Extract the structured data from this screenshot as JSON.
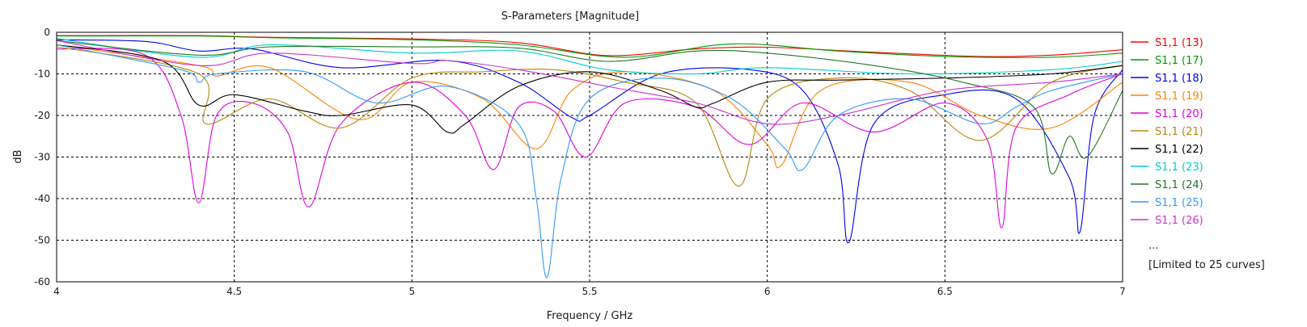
{
  "chart_data": {
    "type": "line",
    "title": "S-Parameters [Magnitude]",
    "xlabel": "Frequency / GHz",
    "ylabel": "dB",
    "xlim": [
      4,
      7
    ],
    "ylim": [
      -60,
      0
    ],
    "xticks": [
      4,
      4.5,
      5,
      5.5,
      6,
      6.5,
      7
    ],
    "xtick_labels": [
      "4",
      "4.5",
      "5",
      "5.5",
      "6",
      "6.5",
      "7"
    ],
    "yticks": [
      0,
      -10,
      -20,
      -30,
      -40,
      -50,
      -60
    ],
    "ytick_labels": [
      "0",
      "-10",
      "-20",
      "-30",
      "-40",
      "-50",
      "-60"
    ],
    "grid": true,
    "legend_position": "right",
    "legend_ellipsis": "...",
    "legend_note": "[Limited to 25 curves]",
    "series": [
      {
        "name": "S1,1 (13)",
        "color": "#ff0000",
        "x": [
          4.0,
          4.4,
          4.6,
          5.0,
          5.3,
          5.55,
          5.8,
          6.0,
          6.3,
          6.6,
          6.8,
          7.0
        ],
        "y": [
          -0.8,
          -0.8,
          -1.2,
          -1.6,
          -2.5,
          -5.6,
          -4.0,
          -3.6,
          -4.8,
          -5.8,
          -5.5,
          -4.2
        ]
      },
      {
        "name": "S1,1 (17)",
        "color": "#009900",
        "x": [
          4.0,
          4.4,
          4.6,
          5.0,
          5.3,
          5.6,
          5.9,
          6.2,
          6.5,
          6.8,
          7.0
        ],
        "y": [
          -0.9,
          -0.9,
          -1.3,
          -1.8,
          -3.0,
          -6.0,
          -2.8,
          -4.5,
          -5.8,
          -6.0,
          -5.0
        ]
      },
      {
        "name": "S1,1 (18)",
        "color": "#0000ee",
        "x": [
          4.0,
          4.25,
          4.4,
          4.55,
          4.8,
          5.1,
          5.3,
          5.45,
          5.5,
          5.7,
          5.95,
          6.1,
          6.2,
          6.23,
          6.3,
          6.5,
          6.7,
          6.85,
          6.88,
          6.92,
          7.0
        ],
        "y": [
          -1.8,
          -2.2,
          -4.5,
          -4.0,
          -8.5,
          -6.8,
          -12.0,
          -20.5,
          -20.0,
          -10.0,
          -9.0,
          -14.0,
          -32.0,
          -50.5,
          -22.0,
          -15.0,
          -16.0,
          -35.0,
          -48.0,
          -20.0,
          -9.0
        ]
      },
      {
        "name": "S1,1 (19)",
        "color": "#ff8000",
        "x": [
          4.0,
          4.4,
          4.45,
          4.6,
          4.85,
          5.0,
          5.2,
          5.35,
          5.45,
          5.6,
          5.85,
          6.0,
          6.04,
          6.15,
          6.4,
          6.6,
          6.8,
          7.0
        ],
        "y": [
          -3.0,
          -8.0,
          -10.5,
          -8.5,
          -21.0,
          -12.0,
          -16.0,
          -28.0,
          -14.0,
          -9.5,
          -14.0,
          -27.0,
          -32.0,
          -14.0,
          -12.0,
          -20.0,
          -23.0,
          -12.0
        ]
      },
      {
        "name": "S1,1 (20)",
        "color": "#dd00dd",
        "x": [
          4.0,
          4.25,
          4.35,
          4.4,
          4.45,
          4.55,
          4.65,
          4.71,
          4.8,
          5.0,
          5.15,
          5.23,
          5.3,
          5.4,
          5.49,
          5.6,
          5.8,
          5.95,
          6.1,
          6.3,
          6.5,
          6.62,
          6.66,
          6.7,
          6.85,
          7.0
        ],
        "y": [
          -4.0,
          -5.5,
          -20.0,
          -41.0,
          -20.0,
          -17.0,
          -24.0,
          -42.0,
          -22.0,
          -12.0,
          -20.0,
          -33.0,
          -18.0,
          -19.0,
          -30.0,
          -17.0,
          -18.0,
          -27.0,
          -17.0,
          -24.0,
          -17.0,
          -26.0,
          -47.0,
          -23.0,
          -15.0,
          -10.0
        ]
      },
      {
        "name": "S1,1 (21)",
        "color": "#b8860b",
        "x": [
          4.0,
          4.4,
          4.42,
          4.6,
          4.8,
          5.0,
          5.2,
          5.4,
          5.6,
          5.8,
          5.92,
          6.0,
          6.2,
          6.4,
          6.6,
          6.8,
          7.0
        ],
        "y": [
          -3.5,
          -10.0,
          -22.0,
          -16.0,
          -23.0,
          -11.0,
          -9.5,
          -9.0,
          -12.0,
          -17.0,
          -37.0,
          -16.0,
          -11.0,
          -14.0,
          -26.0,
          -12.0,
          -8.0
        ]
      },
      {
        "name": "S1,1 (22)",
        "color": "#000000",
        "x": [
          4.0,
          4.3,
          4.4,
          4.5,
          4.7,
          4.8,
          5.0,
          5.1,
          5.15,
          5.3,
          5.5,
          5.7,
          5.8,
          5.85,
          6.0,
          6.2,
          6.5,
          6.8,
          7.0
        ],
        "y": [
          -3.0,
          -7.0,
          -17.5,
          -15.0,
          -19.0,
          -20.0,
          -17.5,
          -24.0,
          -22.0,
          -13.0,
          -9.5,
          -14.0,
          -18.0,
          -17.0,
          -12.0,
          -11.5,
          -11.0,
          -10.0,
          -8.0
        ]
      },
      {
        "name": "S1,1 (23)",
        "color": "#00cccc",
        "x": [
          4.0,
          4.4,
          4.6,
          5.0,
          5.3,
          5.55,
          5.8,
          6.0,
          6.4,
          6.8,
          7.0
        ],
        "y": [
          -1.5,
          -6.0,
          -3.0,
          -5.0,
          -4.5,
          -9.0,
          -10.0,
          -8.5,
          -10.0,
          -9.0,
          -7.0
        ]
      },
      {
        "name": "S1,1 (24)",
        "color": "#227722",
        "x": [
          4.0,
          4.4,
          4.6,
          5.0,
          5.3,
          5.55,
          5.8,
          6.0,
          6.3,
          6.55,
          6.75,
          6.8,
          6.85,
          6.9,
          7.0
        ],
        "y": [
          -2.0,
          -5.5,
          -3.5,
          -3.5,
          -3.8,
          -7.0,
          -4.5,
          -5.0,
          -8.0,
          -12.0,
          -18.0,
          -34.0,
          -25.0,
          -30.0,
          -14.0
        ]
      },
      {
        "name": "S1,1 (25)",
        "color": "#3399ff",
        "x": [
          4.0,
          4.35,
          4.4,
          4.45,
          4.7,
          4.9,
          5.1,
          5.3,
          5.35,
          5.38,
          5.42,
          5.5,
          5.7,
          5.9,
          6.05,
          6.1,
          6.2,
          6.4,
          6.6,
          6.7,
          6.8,
          7.0
        ],
        "y": [
          -3.0,
          -9.0,
          -12.0,
          -10.0,
          -9.5,
          -17.0,
          -13.0,
          -22.0,
          -40.0,
          -59.0,
          -35.0,
          -16.0,
          -11.0,
          -16.0,
          -28.0,
          -33.0,
          -20.0,
          -16.0,
          -22.0,
          -18.0,
          -14.0,
          -10.0
        ]
      },
      {
        "name": "S1,1 (26)",
        "color": "#cc33cc",
        "x": [
          4.0,
          4.4,
          4.6,
          5.0,
          5.1,
          5.3,
          5.55,
          5.8,
          6.0,
          6.2,
          6.5,
          6.8,
          7.0
        ],
        "y": [
          -2.0,
          -8.0,
          -5.0,
          -7.5,
          -6.8,
          -9.0,
          -13.0,
          -17.0,
          -22.0,
          -20.0,
          -14.0,
          -12.0,
          -10.0
        ]
      }
    ]
  }
}
